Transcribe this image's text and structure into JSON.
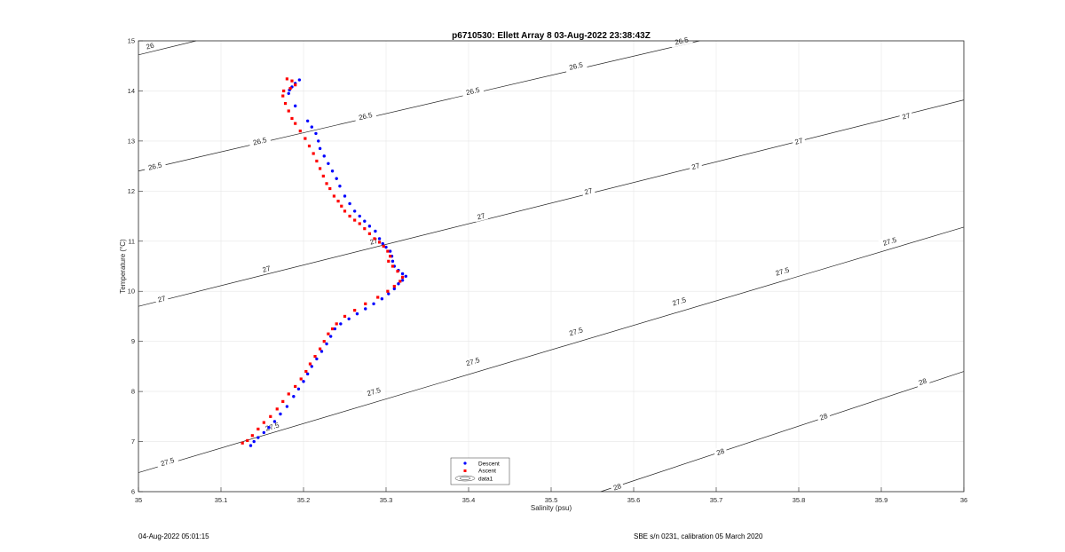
{
  "chart_data": {
    "type": "scatter",
    "title": "p6710530: Ellett Array 8 03-Aug-2022 23:38:43Z",
    "xlabel": "Salinity (psu)",
    "ylabel": "Temperature (°C)",
    "xlim": [
      35,
      36
    ],
    "ylim": [
      6,
      15
    ],
    "x_ticks": [
      "35",
      "35.1",
      "35.2",
      "35.3",
      "35.4",
      "35.5",
      "35.6",
      "35.7",
      "35.8",
      "35.9",
      "36"
    ],
    "y_ticks": [
      "6",
      "7",
      "8",
      "9",
      "10",
      "11",
      "12",
      "13",
      "14",
      "15"
    ],
    "grid": true,
    "legend_position": "bottom-center",
    "legend": [
      "Descent",
      "Ascent",
      "data1"
    ],
    "series": [
      {
        "name": "Descent",
        "color": "#0000ff",
        "marker": "dot",
        "x": [
          35.195,
          35.19,
          35.186,
          35.183,
          35.182,
          35.19,
          35.205,
          35.21,
          35.215,
          35.218,
          35.22,
          35.225,
          35.23,
          35.235,
          35.24,
          35.244,
          35.25,
          35.256,
          35.262,
          35.268,
          35.274,
          35.28,
          35.287,
          35.292,
          35.296,
          35.3,
          35.305,
          35.307,
          35.308,
          35.31,
          35.315,
          35.32,
          35.324,
          35.32,
          35.315,
          35.31,
          35.303,
          35.295,
          35.285,
          35.275,
          35.265,
          35.255,
          35.245,
          35.238,
          35.233,
          35.228,
          35.222,
          35.216,
          35.21,
          35.205,
          35.2,
          35.194,
          35.188,
          35.18,
          35.172,
          35.165,
          35.158,
          35.152,
          35.145,
          35.14,
          35.136
        ],
        "y": [
          14.22,
          14.15,
          14.08,
          14.02,
          13.95,
          13.7,
          13.4,
          13.28,
          13.15,
          13.0,
          12.85,
          12.7,
          12.55,
          12.4,
          12.25,
          12.1,
          11.9,
          11.75,
          11.6,
          11.5,
          11.4,
          11.3,
          11.2,
          11.05,
          10.95,
          10.88,
          10.8,
          10.7,
          10.6,
          10.5,
          10.42,
          10.35,
          10.3,
          10.22,
          10.15,
          10.05,
          9.95,
          9.85,
          9.75,
          9.65,
          9.55,
          9.45,
          9.35,
          9.25,
          9.1,
          8.95,
          8.8,
          8.65,
          8.5,
          8.35,
          8.2,
          8.05,
          7.9,
          7.7,
          7.55,
          7.4,
          7.28,
          7.18,
          7.08,
          7.0,
          6.92
        ]
      },
      {
        "name": "Ascent",
        "color": "#ff0000",
        "marker": "asterisk",
        "x": [
          35.18,
          35.186,
          35.19,
          35.184,
          35.176,
          35.175,
          35.178,
          35.182,
          35.186,
          35.19,
          35.196,
          35.202,
          35.207,
          35.212,
          35.216,
          35.22,
          35.224,
          35.228,
          35.232,
          35.237,
          35.242,
          35.246,
          35.25,
          35.256,
          35.262,
          35.268,
          35.274,
          35.28,
          35.286,
          35.292,
          35.297,
          35.302,
          35.305,
          35.303,
          35.308,
          35.314,
          35.32,
          35.317,
          35.31,
          35.302,
          35.29,
          35.275,
          35.262,
          35.25,
          35.24,
          35.235,
          35.23,
          35.225,
          35.22,
          35.214,
          35.208,
          35.203,
          35.197,
          35.19,
          35.182,
          35.175,
          35.168,
          35.16,
          35.152,
          35.145,
          35.138,
          35.132,
          35.126
        ],
        "y": [
          14.24,
          14.2,
          14.12,
          14.05,
          14.0,
          13.9,
          13.75,
          13.6,
          13.45,
          13.35,
          13.2,
          13.05,
          12.9,
          12.75,
          12.6,
          12.45,
          12.3,
          12.15,
          12.05,
          11.9,
          11.8,
          11.7,
          11.6,
          11.5,
          11.42,
          11.35,
          11.25,
          11.15,
          11.05,
          10.98,
          10.9,
          10.8,
          10.7,
          10.6,
          10.5,
          10.4,
          10.28,
          10.2,
          10.1,
          10.0,
          9.88,
          9.75,
          9.62,
          9.5,
          9.35,
          9.25,
          9.15,
          9.0,
          8.85,
          8.7,
          8.55,
          8.4,
          8.25,
          8.1,
          7.95,
          7.8,
          7.65,
          7.5,
          7.38,
          7.25,
          7.12,
          7.02,
          6.97
        ]
      }
    ],
    "density_contours": [
      {
        "label": "26",
        "line": [
          [
            35.0,
            14.72
          ],
          [
            35.07,
            15.0
          ]
        ],
        "labels_at": [
          [
            35.014,
            14.9
          ]
        ]
      },
      {
        "label": "26.5",
        "line": [
          [
            35.0,
            12.4
          ],
          [
            35.68,
            15.0
          ]
        ],
        "labels_at": [
          [
            35.02,
            12.5
          ],
          [
            35.147,
            13.0
          ],
          [
            35.275,
            13.5
          ],
          [
            35.405,
            14.0
          ],
          [
            35.53,
            14.5
          ],
          [
            35.658,
            15.0
          ]
        ]
      },
      {
        "label": "27",
        "line": [
          [
            35.0,
            9.7
          ],
          [
            36.0,
            13.82
          ]
        ],
        "labels_at": [
          [
            35.028,
            9.85
          ],
          [
            35.155,
            10.45
          ],
          [
            35.285,
            11.0
          ],
          [
            35.415,
            11.5
          ],
          [
            35.545,
            12.0
          ],
          [
            35.675,
            12.5
          ],
          [
            35.8,
            13.0
          ],
          [
            35.93,
            13.5
          ]
        ]
      },
      {
        "label": "27.5",
        "line": [
          [
            35.0,
            6.38
          ],
          [
            36.0,
            11.28
          ]
        ],
        "labels_at": [
          [
            35.035,
            6.6
          ],
          [
            35.162,
            7.3
          ],
          [
            35.285,
            8.0
          ],
          [
            35.405,
            8.6
          ],
          [
            35.53,
            9.2
          ],
          [
            35.655,
            9.8
          ],
          [
            35.78,
            10.4
          ],
          [
            35.91,
            11.0
          ]
        ]
      },
      {
        "label": "28",
        "line": [
          [
            35.56,
            6.0
          ],
          [
            36.0,
            8.4
          ]
        ],
        "labels_at": [
          [
            35.58,
            6.1
          ],
          [
            35.705,
            6.8
          ],
          [
            35.83,
            7.5
          ],
          [
            35.95,
            8.2
          ]
        ]
      }
    ]
  },
  "footer": {
    "timestamp": "04-Aug-2022 05:01:15",
    "calibration": "SBE s/n 0231, calibration 05 March 2020"
  }
}
